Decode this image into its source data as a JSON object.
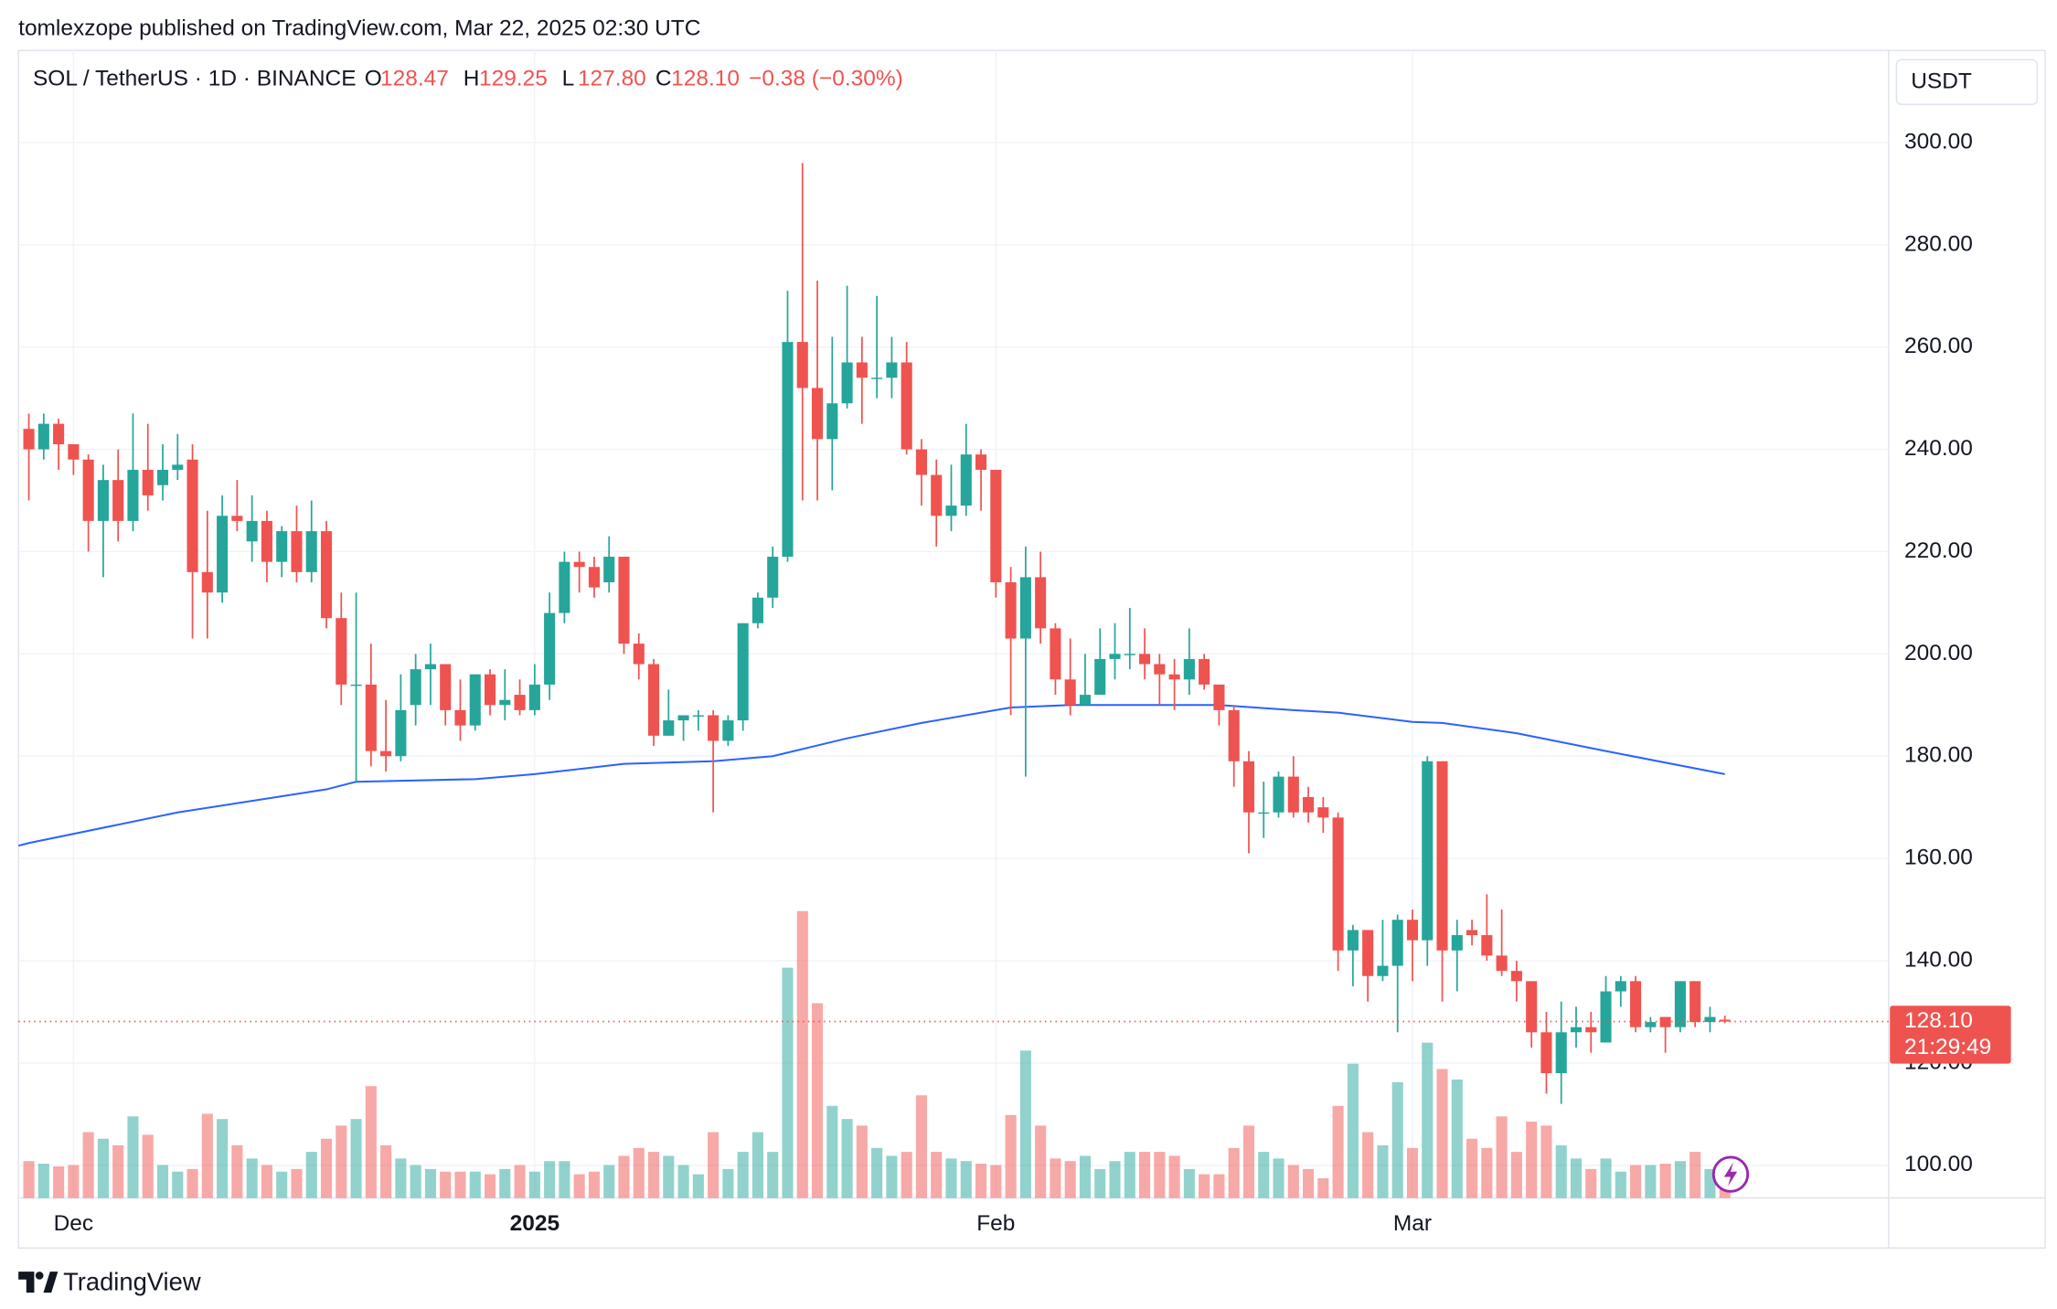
{
  "publisher": "tomlexzope published on TradingView.com, Mar 22, 2025 02:30 UTC",
  "brand": "TradingView",
  "chart_data": {
    "type": "candlestick",
    "title": "SOL / TetherUS · 1D · BINANCE",
    "ohlc": [
      {
        "label": "O",
        "value": 128.47
      },
      {
        "label": "H",
        "value": 129.25
      },
      {
        "label": "L",
        "value": {
          "value": 127.8,
          "label": "127.80"
        }
      },
      {
        "label": "C",
        "value": {
          "value": 128.1,
          "label": "128.10"
        }
      }
    ],
    "change": "−0.38 (−0.30%)",
    "currency": "USDT",
    "last_price": {
      "value": 128.1,
      "label": "128.10"
    },
    "countdown": "21:29:49",
    "up_color": "#26a69a",
    "down_color": "#ef5350",
    "grid": true,
    "ylim": [
      93.6,
      318
    ],
    "yticks": [
      {
        "value": 100,
        "label": "100.00"
      },
      {
        "value": 120,
        "label": "120.00"
      },
      {
        "value": 140,
        "label": "140.00"
      },
      {
        "value": 160,
        "label": "160.00"
      },
      {
        "value": 180,
        "label": "180.00"
      },
      {
        "value": 200,
        "label": "200.00"
      },
      {
        "value": 220,
        "label": "220.00"
      },
      {
        "value": 240,
        "label": "240.00"
      },
      {
        "value": 260,
        "label": "260.00"
      },
      {
        "value": 280,
        "label": "280.00"
      },
      {
        "value": 300,
        "label": "300.00"
      }
    ],
    "xlim": [
      -0.7,
      125
    ],
    "xticks": [
      {
        "value": 3,
        "label": "Dec"
      },
      {
        "value": 34,
        "label": "2025"
      },
      {
        "value": 65,
        "label": "Feb"
      },
      {
        "value": 93,
        "label": "Mar"
      }
    ],
    "open": [
      244,
      240,
      245,
      241,
      238,
      226,
      234,
      226,
      236,
      233,
      236,
      238,
      216,
      212,
      227,
      222,
      226,
      218,
      224,
      216,
      224,
      207,
      194,
      194,
      181,
      180,
      190,
      197,
      198,
      189,
      186,
      196,
      190,
      192,
      189,
      194,
      208,
      218,
      217,
      214,
      219,
      202,
      198,
      184,
      187,
      188,
      188,
      183,
      187,
      206,
      211,
      219,
      261,
      252,
      242,
      249,
      257,
      254,
      254,
      257,
      240,
      235,
      227,
      229,
      239,
      236,
      214,
      203,
      215,
      205,
      195,
      190,
      192,
      199,
      200,
      200,
      198,
      196,
      195,
      199,
      194,
      189,
      179,
      169,
      169,
      176,
      172,
      170,
      168,
      142,
      146,
      137,
      139,
      148,
      144,
      179,
      142,
      146,
      145,
      141,
      138,
      136,
      126,
      118,
      126,
      127,
      124,
      134,
      136,
      127,
      129,
      127,
      136,
      128,
      128.47
    ],
    "high": [
      247,
      247,
      246,
      240,
      239,
      237,
      240,
      247,
      245,
      241,
      243,
      241,
      228,
      231,
      234,
      231,
      228,
      225,
      229,
      230,
      226,
      212,
      212,
      202,
      191,
      196,
      200,
      202,
      198,
      195,
      196,
      197,
      197,
      195,
      198,
      212,
      220,
      220,
      219,
      223,
      219,
      204,
      199,
      193,
      188,
      189,
      189,
      188,
      206,
      212,
      221,
      271,
      296,
      273,
      262,
      272,
      262,
      270,
      262,
      261,
      242,
      238,
      237,
      245,
      240,
      236,
      217,
      221,
      220,
      206,
      203,
      200,
      205,
      206,
      209,
      205,
      200,
      199,
      205,
      200,
      194,
      190,
      181,
      175,
      177,
      180,
      174,
      172,
      169,
      147,
      146,
      148,
      149,
      150,
      180,
      179,
      148,
      148,
      153,
      150,
      140,
      136,
      130,
      132,
      131,
      130,
      137,
      137,
      137,
      129,
      129,
      136,
      136,
      131,
      129.25
    ],
    "low": [
      230,
      238,
      236,
      235,
      220,
      215,
      222,
      224,
      228,
      230,
      234,
      203,
      203,
      210,
      224,
      218,
      214,
      215,
      214,
      214,
      205,
      190,
      175,
      178,
      177,
      179,
      186,
      190,
      186,
      183,
      185,
      188,
      187,
      188,
      188,
      191,
      206,
      212,
      211,
      212,
      200,
      195,
      182,
      184,
      183,
      185,
      169,
      182,
      185,
      205,
      209,
      218,
      230,
      230,
      232,
      248,
      245,
      250,
      250,
      239,
      229,
      221,
      224,
      227,
      228,
      211,
      188,
      176,
      202,
      192,
      188,
      190,
      193,
      195,
      197,
      195,
      190,
      189,
      192,
      193,
      186,
      174,
      161,
      164,
      168,
      168,
      167,
      165,
      138,
      135,
      132,
      136,
      126,
      136,
      139,
      132,
      134,
      143,
      140,
      137,
      132,
      123,
      114,
      112,
      123,
      122,
      124,
      131,
      126,
      126,
      122,
      126,
      127,
      126,
      127.8
    ],
    "close": [
      240,
      245,
      241,
      238,
      226,
      234,
      226,
      236,
      231,
      236,
      237,
      216,
      212,
      227,
      226,
      226,
      218,
      224,
      216,
      224,
      207,
      194,
      194,
      181,
      180,
      189,
      197,
      198,
      189,
      186,
      196,
      190,
      191,
      189,
      194,
      208,
      218,
      217,
      213,
      219,
      202,
      198,
      184,
      187,
      188,
      188,
      183,
      187,
      206,
      211,
      219,
      261,
      252,
      242,
      249,
      257,
      254,
      254,
      257,
      240,
      235,
      227,
      229,
      239,
      236,
      214,
      203,
      215,
      205,
      195,
      190,
      192,
      199,
      200,
      200,
      198,
      196,
      195,
      199,
      194,
      189,
      179,
      169,
      169,
      176,
      169,
      169,
      168,
      142,
      146,
      137,
      139,
      148,
      144,
      179,
      142,
      145,
      145,
      141,
      138,
      136,
      126,
      118,
      126,
      127,
      126,
      134,
      136,
      127,
      128,
      127,
      136,
      128,
      129,
      128.1
    ],
    "volume": [
      28,
      26,
      24,
      25,
      50,
      45,
      40,
      62,
      48,
      25,
      20,
      22,
      64,
      60,
      40,
      30,
      25,
      20,
      22,
      35,
      45,
      55,
      60,
      85,
      40,
      30,
      25,
      22,
      20,
      20,
      20,
      18,
      22,
      25,
      20,
      28,
      28,
      18,
      20,
      25,
      32,
      38,
      35,
      32,
      25,
      18,
      50,
      22,
      35,
      50,
      35,
      175,
      218,
      148,
      70,
      60,
      55,
      38,
      32,
      35,
      78,
      35,
      30,
      28,
      26,
      25,
      63,
      112,
      55,
      30,
      28,
      32,
      22,
      28,
      35,
      35,
      35,
      32,
      22,
      18,
      18,
      38,
      55,
      35,
      30,
      25,
      22,
      15,
      70,
      102,
      50,
      40,
      88,
      38,
      118,
      98,
      90,
      45,
      38,
      62,
      35,
      58,
      55,
      40,
      30,
      22,
      30,
      20,
      25,
      25,
      26,
      28,
      35,
      22,
      20
    ],
    "ma": {
      "color": "#2962ff",
      "x": [
        -0.7,
        0,
        10,
        20,
        22,
        30,
        34,
        40,
        46,
        50,
        55,
        60,
        66,
        70,
        80,
        85,
        88,
        93,
        95,
        100,
        106,
        114
      ],
      "values": [
        162.5,
        163,
        169,
        173.5,
        175,
        175.5,
        176.5,
        178.5,
        179,
        180,
        183.5,
        186.5,
        189.5,
        190,
        190,
        189,
        188.5,
        186.7,
        186.5,
        184.5,
        181,
        176.5
      ]
    }
  }
}
